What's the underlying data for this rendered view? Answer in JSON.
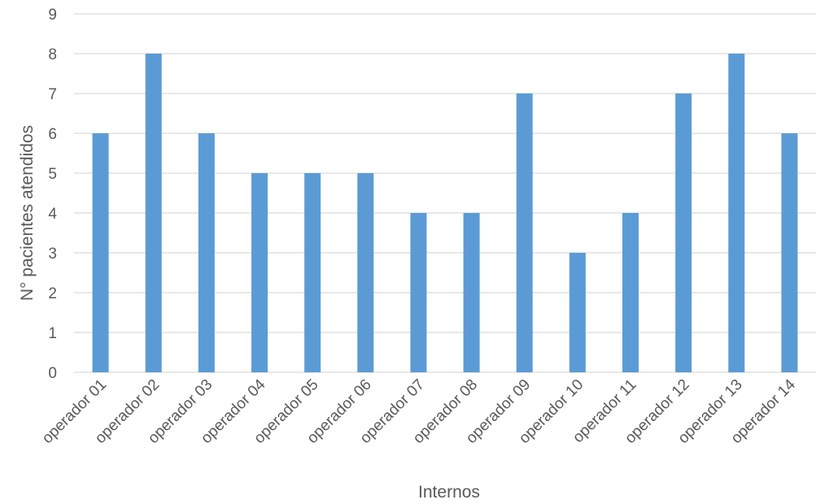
{
  "chart_data": {
    "type": "bar",
    "categories": [
      "operador 01",
      "operador 02",
      "operador 03",
      "operador 04",
      "operador 05",
      "operador 06",
      "operador 07",
      "operador 08",
      "operador 09",
      "operador 10",
      "operador 11",
      "operador 12",
      "operador 13",
      "operador 14"
    ],
    "values": [
      6,
      8,
      6,
      5,
      5,
      5,
      4,
      4,
      7,
      3,
      4,
      7,
      8,
      6
    ],
    "title": "",
    "xlabel": "Internos",
    "ylabel": "N° pacientes atendidos",
    "ylim": [
      0,
      9
    ],
    "yticks": [
      0,
      1,
      2,
      3,
      4,
      5,
      6,
      7,
      8,
      9
    ],
    "grid": true,
    "legend": "none",
    "bar_color": "#5b9bd5",
    "grid_color": "#d9d9d9",
    "text_color": "#595959"
  }
}
